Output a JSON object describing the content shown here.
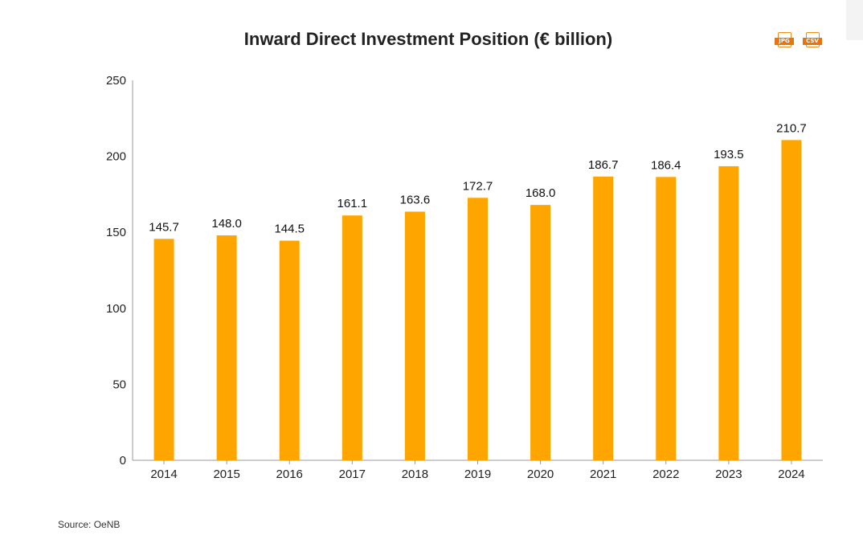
{
  "chart_data": {
    "type": "bar",
    "title": "Inward Direct Investment Position (€ billion)",
    "xlabel": "",
    "ylabel": "",
    "categories": [
      "2014",
      "2015",
      "2016",
      "2017",
      "2018",
      "2019",
      "2020",
      "2021",
      "2022",
      "2023",
      "2024"
    ],
    "values": [
      145.7,
      148.0,
      144.5,
      161.1,
      163.6,
      172.7,
      168.0,
      186.7,
      186.4,
      193.5,
      210.7
    ],
    "value_labels": [
      "145.7",
      "148.0",
      "144.5",
      "161.1",
      "163.6",
      "172.7",
      "168.0",
      "186.7",
      "186.4",
      "193.5",
      "210.7"
    ],
    "ylim": [
      0,
      250
    ],
    "yticks": [
      0,
      50,
      100,
      150,
      200,
      250
    ],
    "grid": false,
    "legend": "none",
    "bar_color": "#FFA500"
  },
  "exports": {
    "jpg_label": "JPG",
    "csv_label": "CSV",
    "icon_color": "#E8740F"
  },
  "source": "Source: OeNB"
}
